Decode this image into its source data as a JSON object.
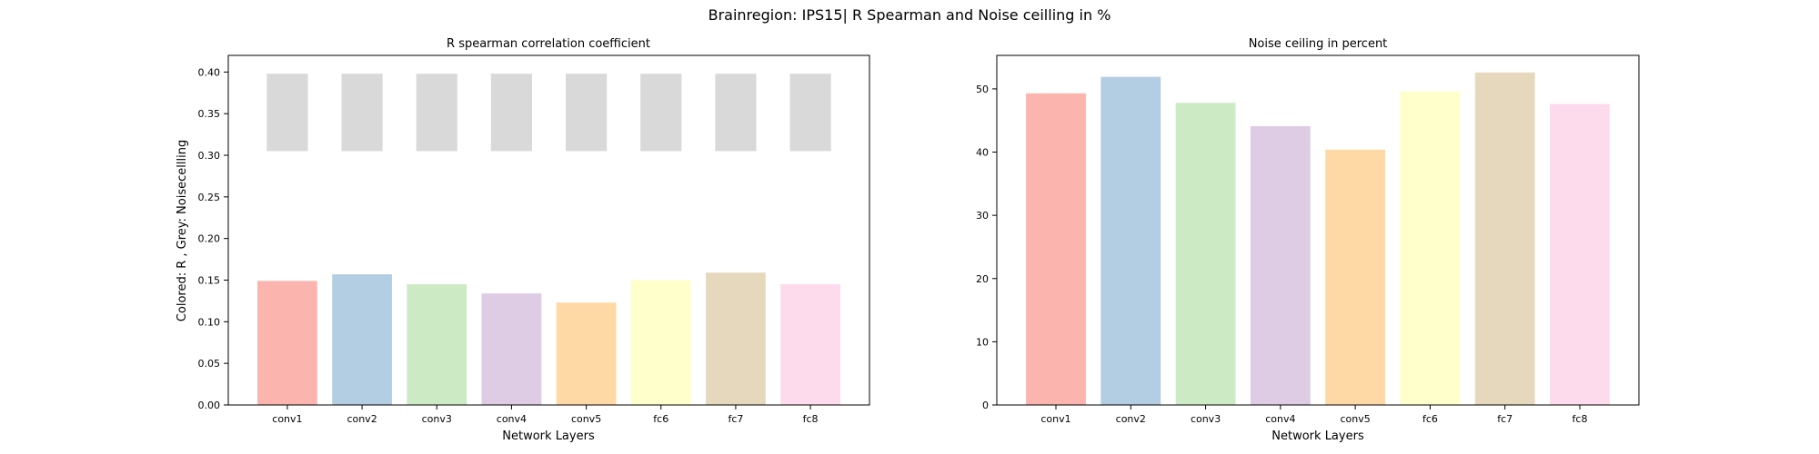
{
  "figure": {
    "title": "Brainregion: IPS15| R Spearman and Noise ceilling in %"
  },
  "chart_data": [
    {
      "type": "bar",
      "title": "R spearman correlation coefficient",
      "xlabel": "Network Layers",
      "ylabel": "Colored: R , Grey: Noisecellling",
      "categories": [
        "conv1",
        "conv2",
        "conv3",
        "conv4",
        "conv5",
        "fc6",
        "fc7",
        "fc8"
      ],
      "ylim": [
        0,
        0.42
      ],
      "yticks": [
        "0.00",
        "0.05",
        "0.10",
        "0.15",
        "0.20",
        "0.25",
        "0.30",
        "0.35",
        "0.40"
      ],
      "series": [
        {
          "values": [
            0.149,
            0.157,
            0.145,
            0.134,
            0.123,
            0.15,
            0.159,
            0.145
          ]
        },
        {
          "type": "floating-bar",
          "lower": [
            0.305,
            0.305,
            0.305,
            0.305,
            0.305,
            0.305,
            0.305,
            0.305
          ],
          "upper": [
            0.398,
            0.398,
            0.398,
            0.398,
            0.398,
            0.398,
            0.398,
            0.398
          ]
        }
      ],
      "grid": false
    },
    {
      "type": "bar",
      "title": "Noise ceiling in percent",
      "xlabel": "Network Layers",
      "ylabel": "",
      "categories": [
        "conv1",
        "conv2",
        "conv3",
        "conv4",
        "conv5",
        "fc6",
        "fc7",
        "fc8"
      ],
      "ylim": [
        0,
        55.3
      ],
      "yticks": [
        "0",
        "10",
        "20",
        "30",
        "40",
        "50"
      ],
      "series": [
        {
          "values": [
            49.3,
            51.9,
            47.8,
            44.1,
            40.4,
            49.6,
            52.6,
            47.6
          ]
        }
      ],
      "grid": false
    }
  ],
  "colors": {
    "bars": [
      "#fbb4ae",
      "#b3cde3",
      "#ccebc5",
      "#decbe4",
      "#fed9a6",
      "#ffffcc",
      "#e5d8bd",
      "#fddaec"
    ],
    "noise_ceiling": "#d9d9d9",
    "axis": "#000000"
  }
}
